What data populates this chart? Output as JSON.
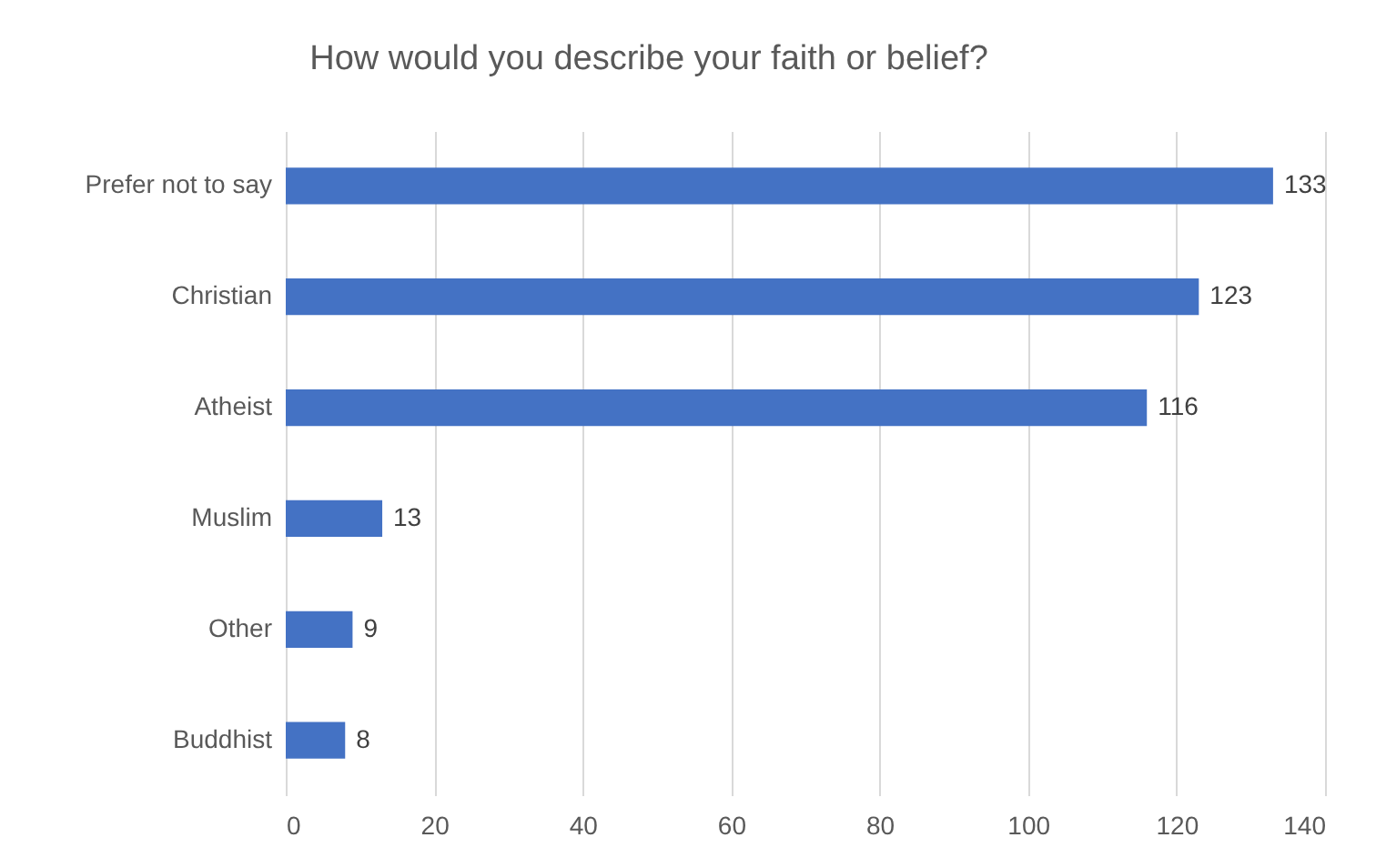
{
  "chart_data": {
    "type": "bar",
    "orientation": "horizontal",
    "title": "How would you describe your faith or belief?",
    "categories": [
      "Prefer not to say",
      "Christian",
      "Atheist",
      "Muslim",
      "Other",
      "Buddhist"
    ],
    "values": [
      133,
      123,
      116,
      13,
      9,
      8
    ],
    "color": "#4472c4",
    "xlim": [
      0,
      140
    ],
    "xticks": [
      0,
      20,
      40,
      60,
      80,
      100,
      120,
      140
    ],
    "grid": "x",
    "data_labels": true
  }
}
